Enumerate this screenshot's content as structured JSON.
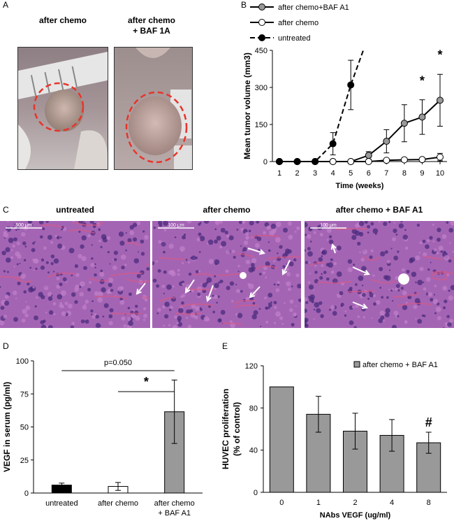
{
  "panels": {
    "A": {
      "label": "A",
      "photo_left_title": "after chemo",
      "photo_right_title_line1": "after chemo",
      "photo_right_title_line2": "+ BAF 1A"
    },
    "B": {
      "label": "B"
    },
    "C": {
      "label": "C",
      "titles": [
        "untreated",
        "after chemo",
        "after chemo + BAF A1"
      ],
      "scale_labels": [
        "500 μm",
        "100 μm",
        "100 μm"
      ]
    },
    "D": {
      "label": "D"
    },
    "E": {
      "label": "E"
    }
  },
  "colors": {
    "gray_fill": "#999999",
    "black_fill": "#000000",
    "white_fill": "#ffffff",
    "dashed_circle": "#e8342a",
    "tissue": "#a464b4",
    "arrow": "#ffffff"
  },
  "chart_data": [
    {
      "panel": "B",
      "type": "line",
      "ylabel": "Mean tumor volume (mm3)",
      "xlabel": "Time (weeks)",
      "xticks": [
        1,
        2,
        3,
        4,
        5,
        6,
        7,
        8,
        9,
        10
      ],
      "yticks": [
        0,
        150,
        300,
        450
      ],
      "ylim": [
        0,
        450
      ],
      "xlim": [
        1,
        10
      ],
      "legend_position": "top",
      "series": [
        {
          "name": "after chemo+BAF A1",
          "marker": "gray",
          "line": "solid",
          "x": [
            1,
            2,
            3,
            4,
            5,
            6,
            7,
            8,
            9,
            10
          ],
          "y": [
            0,
            0,
            0,
            0,
            0,
            25,
            82,
            155,
            180,
            248
          ],
          "err": [
            0,
            0,
            0,
            0,
            0,
            15,
            47,
            75,
            70,
            105
          ]
        },
        {
          "name": "after chemo",
          "marker": "white",
          "line": "solid",
          "x": [
            1,
            2,
            3,
            4,
            5,
            6,
            7,
            8,
            9,
            10
          ],
          "y": [
            0,
            0,
            0,
            0,
            0,
            0,
            5,
            7,
            8,
            18
          ],
          "err": [
            0,
            0,
            0,
            0,
            0,
            0,
            0,
            0,
            3,
            15
          ]
        },
        {
          "name": "untreated",
          "marker": "black",
          "line": "dashed",
          "x": [
            1,
            2,
            3,
            4,
            5
          ],
          "y": [
            0,
            0,
            0,
            72,
            310
          ],
          "err": [
            0,
            0,
            0,
            45,
            100
          ],
          "extension": [
            5.7,
            450
          ]
        }
      ],
      "annotations": [
        {
          "text": "*",
          "x": 9,
          "y": 310
        },
        {
          "text": "*",
          "x": 10,
          "y": 415
        }
      ]
    },
    {
      "panel": "D",
      "type": "bar",
      "ylabel": "VEGF in serum (pg/ml)",
      "categories": [
        "untreated",
        "after chemo",
        "after chemo\n+ BAF A1"
      ],
      "values": [
        6,
        5,
        61.5
      ],
      "errors": [
        1.5,
        3,
        24
      ],
      "bar_colors": [
        "black",
        "white",
        "gray"
      ],
      "yticks": [
        0,
        25,
        50,
        75,
        100
      ],
      "ylim": [
        0,
        100
      ],
      "annotations": [
        {
          "text": "p=0.050",
          "from": 0,
          "to": 2
        },
        {
          "text": "*",
          "from": 1,
          "to": 2
        }
      ]
    },
    {
      "panel": "E",
      "type": "bar",
      "ylabel": "HUVEC proliferation\n(% of control)",
      "xlabel": "NAbs VEGF (ug/ml)",
      "categories": [
        "0",
        "1",
        "2",
        "4",
        "8"
      ],
      "values": [
        100,
        74,
        58,
        54,
        47
      ],
      "errors": [
        0,
        17,
        17,
        15,
        10
      ],
      "yticks": [
        0,
        40,
        80,
        120
      ],
      "ylim": [
        0,
        120
      ],
      "legend": "after chemo + BAF A1",
      "annotations": [
        {
          "text": "#",
          "category": "8"
        }
      ]
    }
  ]
}
